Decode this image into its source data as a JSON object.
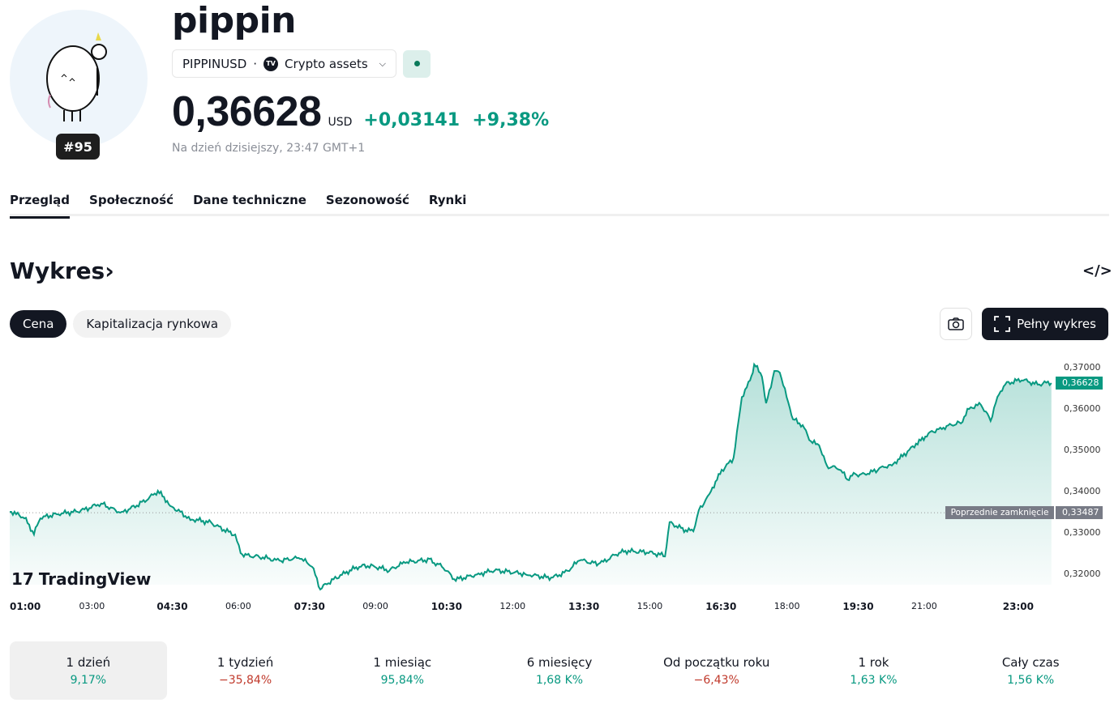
{
  "coin": {
    "name": "pippin",
    "rank": "#95",
    "symbol": "PIPPINUSD",
    "exchange": "Crypto assets",
    "exchange_icon": "TV",
    "price": "0,36628",
    "currency": "USD",
    "change": "+0,03141",
    "change_pct": "+9,38%",
    "as_of": "Na dzień dzisiejszy, 23:47 GMT+1"
  },
  "tabs": [
    "Przegląd",
    "Społeczność",
    "Dane techniczne",
    "Sezonowość",
    "Rynki"
  ],
  "chart_section": {
    "title": "Wykres",
    "arrow": "›",
    "embed": "</>",
    "toggle": [
      "Cena",
      "Kapitalizacja rynkowa"
    ],
    "full_button": "Pełny wykres",
    "watermark": "TradingView"
  },
  "colors": {
    "up": "#089981",
    "down": "#c0392b"
  },
  "chart_data": {
    "type": "area",
    "xlabel": "",
    "ylabel": "",
    "ylim": [
      0.3155,
      0.3715
    ],
    "xlim": [
      1,
      23.8
    ],
    "y_ticks": [
      "0,37000",
      "0,36000",
      "0,35000",
      "0,34000",
      "0,33000",
      "0,32000"
    ],
    "y_tick_values": [
      0.37,
      0.36,
      0.35,
      0.34,
      0.33,
      0.32
    ],
    "x_ticks": [
      "01:00",
      "03:00",
      "04:30",
      "06:00",
      "07:30",
      "09:00",
      "10:30",
      "12:00",
      "13:30",
      "15:00",
      "16:30",
      "18:00",
      "19:30",
      "21:00",
      "23:00"
    ],
    "x_tick_values": [
      1,
      2.8,
      4.5,
      6,
      7.5,
      9,
      10.5,
      12,
      13.5,
      15,
      16.5,
      18,
      19.5,
      21,
      23
    ],
    "last_price_label": "0,36628",
    "last_price": 0.36628,
    "prev_close_label": "Poprzednie zamknięcie",
    "prev_close_value": "0,33487",
    "prev_close": 0.33487,
    "series": [
      [
        1.0,
        0.3351
      ],
      [
        1.14,
        0.3345
      ],
      [
        1.32,
        0.3335
      ],
      [
        1.53,
        0.3296
      ],
      [
        1.67,
        0.3335
      ],
      [
        2.03,
        0.3345
      ],
      [
        2.56,
        0.3355
      ],
      [
        3.0,
        0.3371
      ],
      [
        3.45,
        0.3351
      ],
      [
        3.89,
        0.3375
      ],
      [
        4.24,
        0.3402
      ],
      [
        4.51,
        0.3365
      ],
      [
        4.95,
        0.3331
      ],
      [
        5.4,
        0.3326
      ],
      [
        5.93,
        0.3296
      ],
      [
        6.05,
        0.3251
      ],
      [
        6.46,
        0.3241
      ],
      [
        6.9,
        0.3233
      ],
      [
        7.35,
        0.3237
      ],
      [
        7.61,
        0.3218
      ],
      [
        7.79,
        0.3163
      ],
      [
        7.97,
        0.3178
      ],
      [
        8.23,
        0.3198
      ],
      [
        8.68,
        0.3218
      ],
      [
        8.98,
        0.3218
      ],
      [
        9.3,
        0.3208
      ],
      [
        9.65,
        0.3227
      ],
      [
        10.18,
        0.3237
      ],
      [
        10.45,
        0.3218
      ],
      [
        10.72,
        0.3188
      ],
      [
        11.25,
        0.3202
      ],
      [
        11.6,
        0.3208
      ],
      [
        12.31,
        0.3198
      ],
      [
        12.84,
        0.3192
      ],
      [
        13.2,
        0.3208
      ],
      [
        13.46,
        0.3233
      ],
      [
        13.91,
        0.3227
      ],
      [
        14.26,
        0.3247
      ],
      [
        14.53,
        0.3257
      ],
      [
        14.97,
        0.3251
      ],
      [
        15.33,
        0.3243
      ],
      [
        15.43,
        0.3326
      ],
      [
        15.68,
        0.3312
      ],
      [
        15.95,
        0.3304
      ],
      [
        16.07,
        0.3355
      ],
      [
        16.3,
        0.3394
      ],
      [
        16.57,
        0.3453
      ],
      [
        16.83,
        0.3482
      ],
      [
        17.01,
        0.3629
      ],
      [
        17.19,
        0.3669
      ],
      [
        17.28,
        0.3708
      ],
      [
        17.45,
        0.3678
      ],
      [
        17.54,
        0.3614
      ],
      [
        17.72,
        0.3692
      ],
      [
        17.84,
        0.3688
      ],
      [
        17.99,
        0.3629
      ],
      [
        18.13,
        0.3575
      ],
      [
        18.34,
        0.3561
      ],
      [
        18.52,
        0.3522
      ],
      [
        18.7,
        0.3512
      ],
      [
        18.87,
        0.3463
      ],
      [
        19.14,
        0.3453
      ],
      [
        19.32,
        0.3429
      ],
      [
        19.49,
        0.3443
      ],
      [
        19.76,
        0.3443
      ],
      [
        20.02,
        0.3457
      ],
      [
        20.29,
        0.3463
      ],
      [
        20.56,
        0.3492
      ],
      [
        20.82,
        0.3516
      ],
      [
        21.09,
        0.3541
      ],
      [
        21.35,
        0.3555
      ],
      [
        21.8,
        0.3565
      ],
      [
        21.98,
        0.36
      ],
      [
        22.24,
        0.361
      ],
      [
        22.45,
        0.3571
      ],
      [
        22.6,
        0.3629
      ],
      [
        22.77,
        0.3659
      ],
      [
        23.13,
        0.3669
      ],
      [
        23.48,
        0.3659
      ],
      [
        23.78,
        0.36628
      ]
    ]
  },
  "periods": [
    {
      "label": "1 dzień",
      "value": "9,17%",
      "dir": "up"
    },
    {
      "label": "1 tydzień",
      "value": "−35,84%",
      "dir": "down"
    },
    {
      "label": "1 miesiąc",
      "value": "95,84%",
      "dir": "up"
    },
    {
      "label": "6 miesięcy",
      "value": "1,68 K%",
      "dir": "up"
    },
    {
      "label": "Od początku roku",
      "value": "−6,43%",
      "dir": "down"
    },
    {
      "label": "1 rok",
      "value": "1,63 K%",
      "dir": "up"
    },
    {
      "label": "Cały czas",
      "value": "1,56 K%",
      "dir": "up"
    }
  ]
}
